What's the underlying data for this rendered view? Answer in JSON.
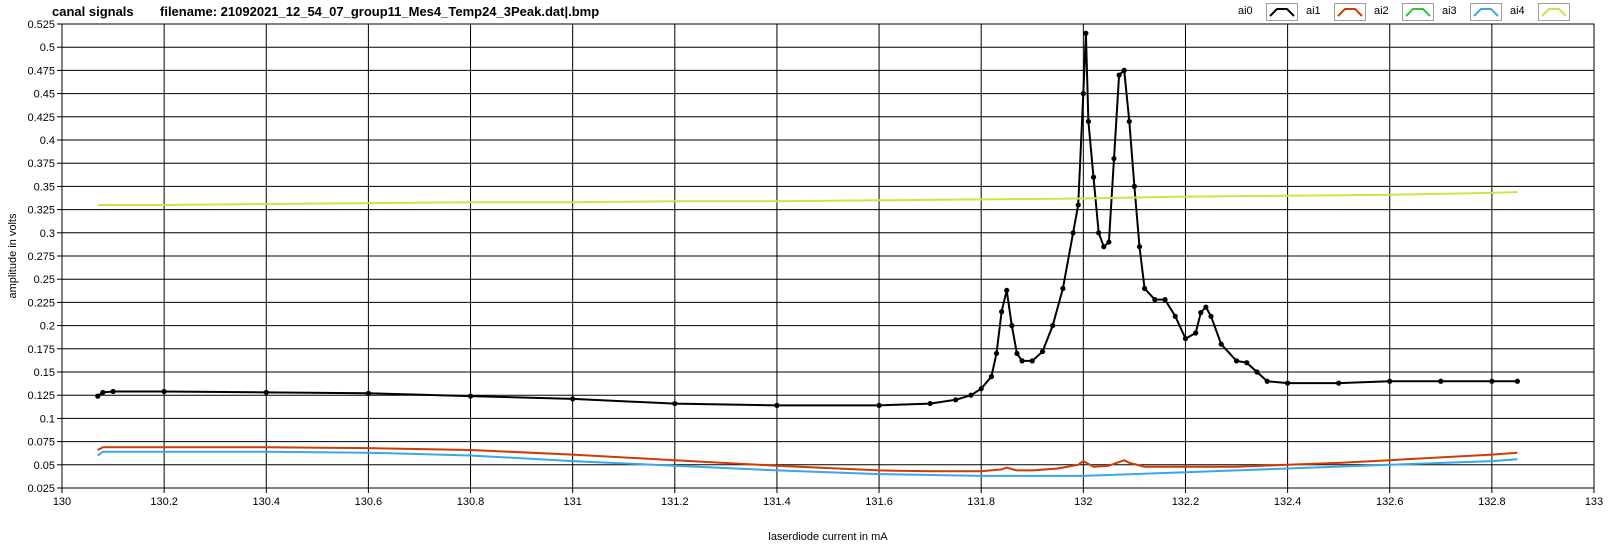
{
  "header": {
    "title": "canal signals",
    "filename": "filename: 21092021_12_54_07_group11_Mes4_Temp24_3Peak.dat|.bmp"
  },
  "legend": [
    {
      "name": "ai0",
      "color": "#000000"
    },
    {
      "name": "ai1",
      "color": "#d13a00"
    },
    {
      "name": "ai2",
      "color": "#2ec52e"
    },
    {
      "name": "ai3",
      "color": "#3aa7e6"
    },
    {
      "name": "ai4",
      "color": "#c4e84a"
    }
  ],
  "chart_data": {
    "type": "line",
    "title": "canal signals",
    "xlabel": "laserdiode current in mA",
    "ylabel": "amplitude in volts",
    "xlim": [
      130,
      133
    ],
    "ylim": [
      0.025,
      0.525
    ],
    "grid": true,
    "legend_position": "top-right",
    "xticks": [
      "130",
      "130.2",
      "130.4",
      "130.6",
      "130.8",
      "131",
      "131.2",
      "131.4",
      "131.6",
      "131.8",
      "132",
      "132.2",
      "132.4",
      "132.6",
      "132.8",
      "133"
    ],
    "yticks": [
      "0.025",
      "0.05",
      "0.075",
      "0.1",
      "0.125",
      "0.15",
      "0.175",
      "0.2",
      "0.225",
      "0.25",
      "0.275",
      "0.3",
      "0.325",
      "0.35",
      "0.375",
      "0.4",
      "0.425",
      "0.45",
      "0.475",
      "0.5",
      "0.525"
    ],
    "series": [
      {
        "name": "ai0",
        "color": "#000000",
        "markers": true,
        "x": [
          130.07,
          130.08,
          130.1,
          130.2,
          130.4,
          130.6,
          130.8,
          131.0,
          131.2,
          131.4,
          131.6,
          131.7,
          131.75,
          131.78,
          131.8,
          131.82,
          131.83,
          131.84,
          131.85,
          131.86,
          131.87,
          131.88,
          131.9,
          131.92,
          131.94,
          131.96,
          131.98,
          131.99,
          132.0,
          132.005,
          132.01,
          132.02,
          132.03,
          132.04,
          132.05,
          132.06,
          132.07,
          132.08,
          132.09,
          132.1,
          132.11,
          132.12,
          132.14,
          132.16,
          132.18,
          132.2,
          132.22,
          132.23,
          132.24,
          132.25,
          132.27,
          132.3,
          132.32,
          132.34,
          132.36,
          132.4,
          132.5,
          132.6,
          132.7,
          132.8,
          132.85
        ],
        "y": [
          0.124,
          0.128,
          0.129,
          0.129,
          0.128,
          0.127,
          0.124,
          0.121,
          0.116,
          0.114,
          0.114,
          0.116,
          0.12,
          0.125,
          0.132,
          0.145,
          0.17,
          0.215,
          0.238,
          0.2,
          0.17,
          0.162,
          0.162,
          0.172,
          0.2,
          0.24,
          0.3,
          0.33,
          0.45,
          0.515,
          0.42,
          0.36,
          0.3,
          0.285,
          0.29,
          0.38,
          0.47,
          0.475,
          0.42,
          0.35,
          0.285,
          0.24,
          0.228,
          0.228,
          0.21,
          0.186,
          0.192,
          0.214,
          0.22,
          0.21,
          0.18,
          0.162,
          0.16,
          0.15,
          0.14,
          0.138,
          0.138,
          0.14,
          0.14,
          0.14,
          0.14
        ]
      },
      {
        "name": "ai1",
        "color": "#d13a00",
        "markers": false,
        "x": [
          130.07,
          130.08,
          130.2,
          130.4,
          130.6,
          130.8,
          131.0,
          131.2,
          131.4,
          131.6,
          131.7,
          131.8,
          131.84,
          131.85,
          131.87,
          131.9,
          131.95,
          131.99,
          132.0,
          132.02,
          132.05,
          132.08,
          132.09,
          132.12,
          132.2,
          132.3,
          132.4,
          132.5,
          132.6,
          132.7,
          132.8,
          132.85
        ],
        "y": [
          0.066,
          0.069,
          0.069,
          0.069,
          0.068,
          0.066,
          0.061,
          0.055,
          0.049,
          0.044,
          0.043,
          0.043,
          0.045,
          0.047,
          0.044,
          0.044,
          0.046,
          0.05,
          0.054,
          0.048,
          0.049,
          0.055,
          0.052,
          0.048,
          0.048,
          0.048,
          0.05,
          0.052,
          0.055,
          0.058,
          0.061,
          0.063
        ]
      },
      {
        "name": "ai3",
        "color": "#3aa7e6",
        "markers": false,
        "x": [
          130.07,
          130.08,
          130.2,
          130.4,
          130.6,
          130.8,
          131.0,
          131.2,
          131.4,
          131.6,
          131.8,
          132.0,
          132.2,
          132.4,
          132.6,
          132.8,
          132.85
        ],
        "y": [
          0.06,
          0.064,
          0.064,
          0.064,
          0.063,
          0.06,
          0.054,
          0.049,
          0.044,
          0.04,
          0.038,
          0.038,
          0.042,
          0.046,
          0.05,
          0.054,
          0.056
        ]
      },
      {
        "name": "ai4",
        "color": "#c4e84a",
        "markers": false,
        "x": [
          130.07,
          130.2,
          130.4,
          130.6,
          130.8,
          131.0,
          131.2,
          131.4,
          131.6,
          131.8,
          132.0,
          132.2,
          132.4,
          132.6,
          132.8,
          132.85
        ],
        "y": [
          0.33,
          0.33,
          0.331,
          0.332,
          0.333,
          0.333,
          0.334,
          0.334,
          0.335,
          0.336,
          0.337,
          0.339,
          0.34,
          0.341,
          0.343,
          0.344
        ]
      }
    ]
  }
}
